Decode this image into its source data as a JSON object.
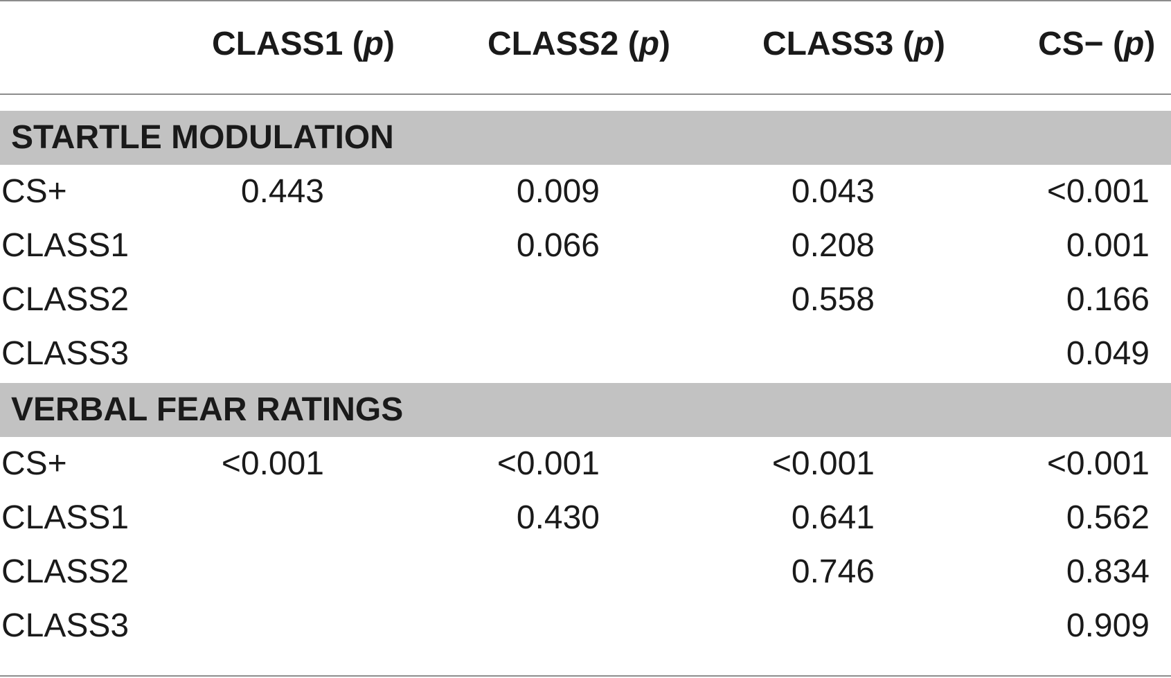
{
  "header": {
    "columns": [
      {
        "name": "CLASS1",
        "p": "p"
      },
      {
        "name": "CLASS2",
        "p": "p"
      },
      {
        "name": "CLASS3",
        "p": "p"
      },
      {
        "name": "CS−",
        "p": "p"
      }
    ]
  },
  "sections": [
    {
      "title": "STARTLE MODULATION",
      "rows": [
        {
          "label": "CS+",
          "values": [
            "0.443",
            "0.009",
            "0.043",
            "<0.001"
          ]
        },
        {
          "label": "CLASS1",
          "values": [
            "",
            "0.066",
            "0.208",
            "0.001"
          ]
        },
        {
          "label": "CLASS2",
          "values": [
            "",
            "",
            "0.558",
            "0.166"
          ]
        },
        {
          "label": "CLASS3",
          "values": [
            "",
            "",
            "",
            "0.049"
          ]
        }
      ]
    },
    {
      "title": "VERBAL FEAR RATINGS",
      "rows": [
        {
          "label": "CS+",
          "values": [
            "<0.001",
            "<0.001",
            "<0.001",
            "<0.001"
          ]
        },
        {
          "label": "CLASS1",
          "values": [
            "",
            "0.430",
            "0.641",
            "0.562"
          ]
        },
        {
          "label": "CLASS2",
          "values": [
            "",
            "",
            "0.746",
            "0.834"
          ]
        },
        {
          "label": "CLASS3",
          "values": [
            "",
            "",
            "",
            "0.909"
          ]
        }
      ]
    }
  ]
}
